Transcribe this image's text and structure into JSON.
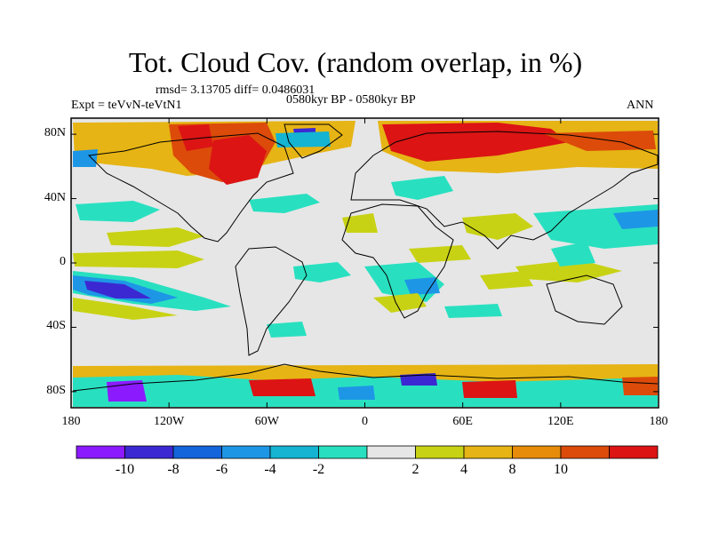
{
  "title": "Tot. Cloud Cov. (random overlap, in %)",
  "stats": {
    "rmsd_diff": "rmsd= 3.13705 diff= 0.0486031",
    "experiment": "Expt = teVvN-teVtN1",
    "period": "0580kyr BP - 0580kyr BP",
    "season": "ANN"
  },
  "map": {
    "projection": "cylindrical-equidistant",
    "lon_range": [
      -180,
      180
    ],
    "lat_range": [
      -90,
      90
    ],
    "background_color": "#e6e6e6",
    "x_ticks": [
      {
        "lon": -180,
        "label": "180"
      },
      {
        "lon": -120,
        "label": "120W"
      },
      {
        "lon": -60,
        "label": "60W"
      },
      {
        "lon": 0,
        "label": "0"
      },
      {
        "lon": 60,
        "label": "60E"
      },
      {
        "lon": 120,
        "label": "120E"
      },
      {
        "lon": 180,
        "label": "180"
      }
    ],
    "y_ticks": [
      {
        "lat": 80,
        "label": "80N"
      },
      {
        "lat": 40,
        "label": "40N"
      },
      {
        "lat": 0,
        "label": "0"
      },
      {
        "lat": -40,
        "label": "40S"
      },
      {
        "lat": -80,
        "label": "80S"
      }
    ]
  },
  "colorbar": {
    "colors": [
      "#8c1aff",
      "#3c28d2",
      "#1464dc",
      "#1e96e6",
      "#14b4d2",
      "#28e0c0",
      "#e6e6e6",
      "#c8d214",
      "#e6b414",
      "#e68c0a",
      "#dc4b0a",
      "#dc1414"
    ],
    "labels": [
      "-10",
      "-8",
      "-6",
      "-4",
      "-2",
      "2",
      "4",
      "8",
      "10"
    ]
  }
}
